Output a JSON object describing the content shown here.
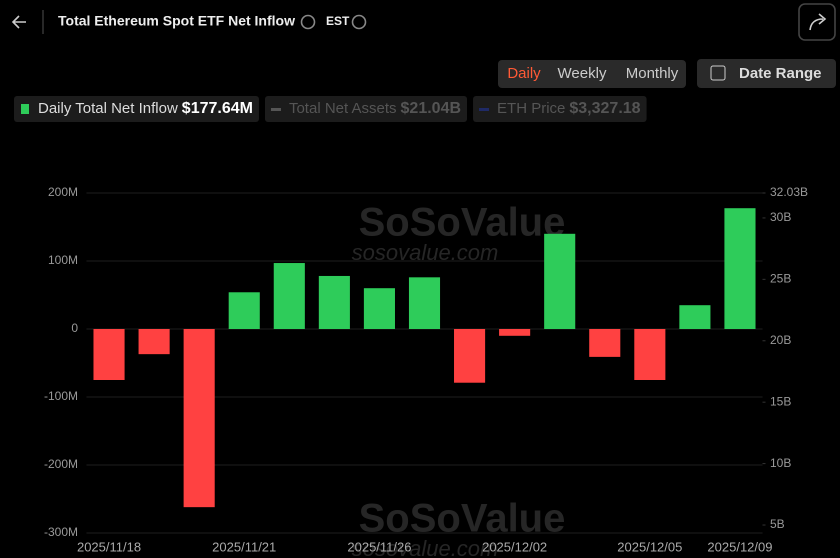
{
  "header": {
    "title": "Total Ethereum Spot ETF Net Inflow",
    "timezone": "EST",
    "tabs": [
      "Daily",
      "Weekly",
      "Monthly"
    ],
    "date_range": "Date Range"
  },
  "watermark": [
    "SoSoValue",
    "sosovalue.com"
  ],
  "chart_data": {
    "type": "bar",
    "categories": [
      "2025/11/18",
      null,
      null,
      "2025/11/21",
      null,
      null,
      "2025/11/26",
      null,
      null,
      "2025/12/02",
      null,
      null,
      "2025/12/05",
      null,
      "2025/12/09"
    ],
    "series": [
      {
        "name": "Daily Total Net Inflow",
        "latest_label": "$177.64M",
        "color": "#2ecc5a",
        "negative_color": "#ff4141",
        "values": [
          -75,
          -37,
          -262,
          54,
          97,
          78,
          60,
          76,
          -79,
          -10,
          140,
          -41,
          -75,
          35,
          177.64
        ]
      }
    ],
    "inactive_series": [
      {
        "name": "Total Net Assets",
        "latest_label": "$21.04B",
        "color": "#555555"
      },
      {
        "name": "ETH Price",
        "latest_label": "$3,327.18",
        "color": "#1f2a66"
      }
    ],
    "ylim": [
      -300,
      200
    ],
    "yticks": [
      {
        "value": -300,
        "label": "-300M"
      },
      {
        "value": -200,
        "label": "-200M"
      },
      {
        "value": -100,
        "label": "-100M"
      },
      0,
      {
        "value": 100,
        "label": "100M"
      },
      {
        "value": 200,
        "label": "200M"
      }
    ],
    "y2lim": [
      4.35,
      32.03
    ],
    "y2ticks": [
      {
        "value": 5,
        "label": "5B"
      },
      {
        "value": 10,
        "label": "10B"
      },
      {
        "value": 15,
        "label": "15B"
      },
      {
        "value": 20,
        "label": "20B"
      },
      {
        "value": 25,
        "label": "25B"
      },
      {
        "value": 30,
        "label": "30B"
      },
      {
        "value": 32.03,
        "label": "32.03B"
      }
    ],
    "grid": true
  }
}
